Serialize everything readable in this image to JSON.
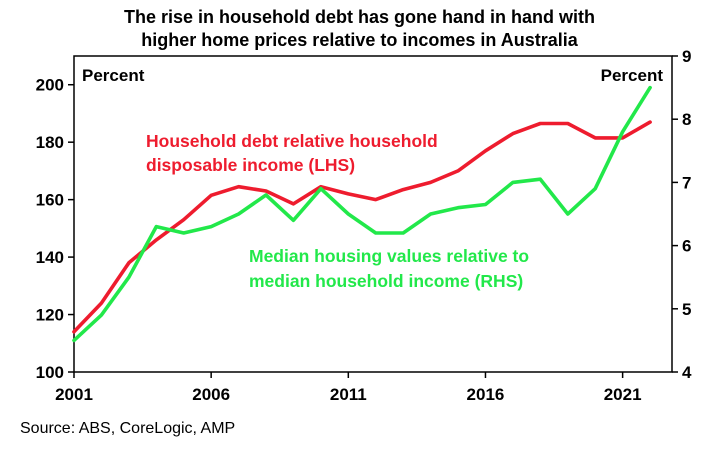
{
  "chart_data": {
    "type": "line",
    "title": [
      "The rise in household debt has gone hand in hand with",
      "higher home prices relative to incomes in Australia"
    ],
    "source": "Source: ABS, CoreLogic, AMP",
    "left_unit": "Percent",
    "right_unit": "Percent",
    "xlim": [
      2001,
      2022.8
    ],
    "x_ticks": [
      2001,
      2006,
      2011,
      2016,
      2021
    ],
    "ylim_left": [
      100,
      210
    ],
    "ylim_right": [
      4,
      9
    ],
    "yticks_left": [
      100,
      120,
      140,
      160,
      180,
      200
    ],
    "yticks_right": [
      4,
      5,
      6,
      7,
      8,
      9
    ],
    "grid": false,
    "series": [
      {
        "axis": "left",
        "color": "#ee1c2e",
        "label_lines": [
          "Household debt relative household",
          "disposable income (LHS)"
        ],
        "x": [
          2001,
          2002,
          2003,
          2004,
          2005,
          2006,
          2007,
          2008,
          2009,
          2010,
          2011,
          2012,
          2013,
          2014,
          2015,
          2016,
          2017,
          2018,
          2019,
          2020,
          2021,
          2022
        ],
        "y": [
          114,
          124,
          138,
          146,
          153,
          161.5,
          164.5,
          163,
          158.5,
          164.5,
          162,
          160,
          163.5,
          166,
          170,
          177,
          183,
          186.5,
          186.5,
          181.5,
          181.5,
          187
        ]
      },
      {
        "axis": "right",
        "color": "#22e84a",
        "label_lines": [
          "Median housing values relative to",
          "median household income (RHS)"
        ],
        "x": [
          2001,
          2002,
          2003,
          2004,
          2005,
          2006,
          2007,
          2008,
          2009,
          2010,
          2011,
          2012,
          2013,
          2014,
          2015,
          2016,
          2017,
          2018,
          2019,
          2020,
          2021,
          2022
        ],
        "y": [
          4.5,
          4.9,
          5.5,
          6.3,
          6.2,
          6.3,
          6.5,
          6.8,
          6.4,
          6.9,
          6.5,
          6.2,
          6.2,
          6.5,
          6.6,
          6.65,
          7,
          7.05,
          6.5,
          6.9,
          7.8,
          8.5
        ]
      }
    ]
  }
}
